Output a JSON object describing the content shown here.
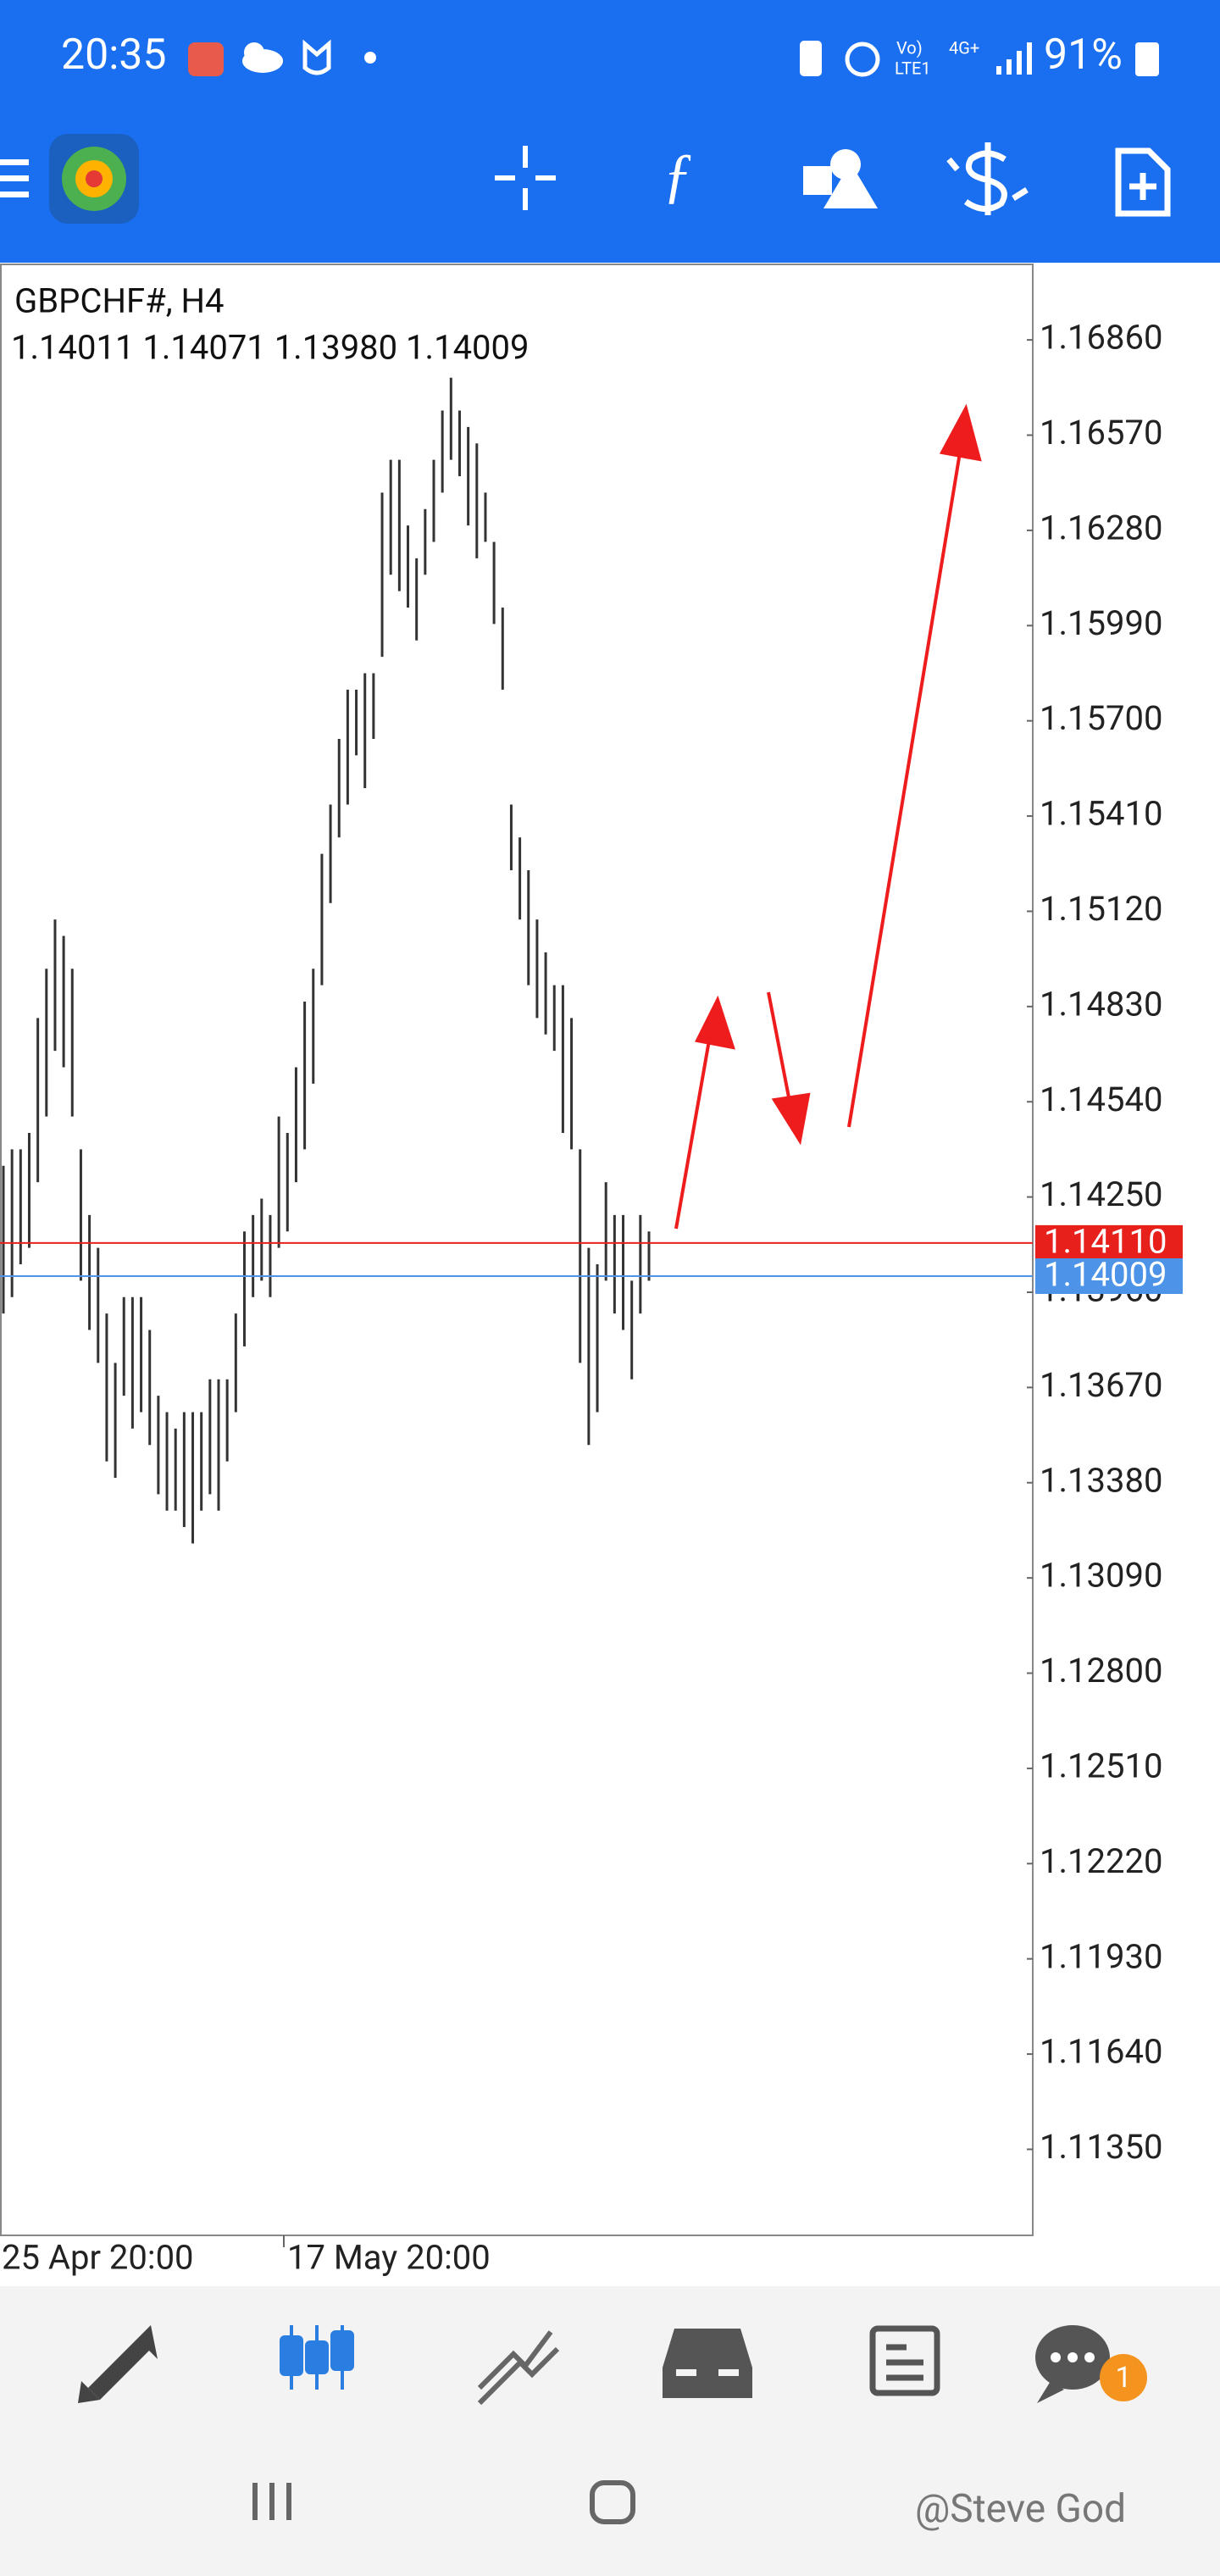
{
  "status_bar": {
    "time": "20:35",
    "volte": "Vo)",
    "lte": "LTE1",
    "network": "4G+",
    "battery": "91%"
  },
  "chart": {
    "symbol": "GBPCHF#, H4",
    "ohlc": "1.14011 1.14071 1.13980 1.14009",
    "ylim": [
      1.11088,
      1.1709
    ],
    "yticks": [
      {
        "value": 1.1686,
        "label": "1.16860"
      },
      {
        "value": 1.1657,
        "label": "1.16570"
      },
      {
        "value": 1.1628,
        "label": "1.16280"
      },
      {
        "value": 1.1599,
        "label": "1.15990"
      },
      {
        "value": 1.157,
        "label": "1.15700"
      },
      {
        "value": 1.1541,
        "label": "1.15410"
      },
      {
        "value": 1.1512,
        "label": "1.15120"
      },
      {
        "value": 1.1483,
        "label": "1.14830"
      },
      {
        "value": 1.1454,
        "label": "1.14540"
      },
      {
        "value": 1.1425,
        "label": "1.14250"
      },
      {
        "value": 1.1396,
        "label": "1.13960"
      },
      {
        "value": 1.1367,
        "label": "1.13670"
      },
      {
        "value": 1.1338,
        "label": "1.13380"
      },
      {
        "value": 1.1309,
        "label": "1.13090"
      },
      {
        "value": 1.128,
        "label": "1.12800"
      },
      {
        "value": 1.1251,
        "label": "1.12510"
      },
      {
        "value": 1.1222,
        "label": "1.12220"
      },
      {
        "value": 1.1193,
        "label": "1.11930"
      },
      {
        "value": 1.1164,
        "label": "1.11640"
      },
      {
        "value": 1.1135,
        "label": "1.11350"
      }
    ],
    "price_lines": [
      {
        "value": 1.1411,
        "label": "1.14110",
        "color": "#e8201c"
      },
      {
        "value": 1.14009,
        "color": "#4d94e8"
      }
    ],
    "bars": {
      "high": [
        1.14345,
        1.14395,
        1.14395,
        1.14445,
        1.14795,
        1.14945,
        1.15095,
        1.15045,
        1.14945,
        1.14395,
        1.14195,
        1.14095,
        1.13895,
        1.13745,
        1.13945,
        1.13945,
        1.13945,
        1.13845,
        1.13645,
        1.13595,
        1.13545,
        1.13595,
        1.13595,
        1.13595,
        1.13695,
        1.13695,
        1.13695,
        1.13895,
        1.14145,
        1.14195,
        1.14245,
        1.14195,
        1.14495,
        1.14445,
        1.14645,
        1.14845,
        1.14945,
        1.15295,
        1.15445,
        1.15645,
        1.15795,
        1.15795,
        1.15845,
        1.15845,
        1.16395,
        1.16495,
        1.16495,
        1.16295,
        1.16195,
        1.16345,
        1.16495,
        1.16645,
        1.16745,
        1.16645,
        1.16595,
        1.16545,
        1.16395,
        1.16245,
        1.16045,
        1.15445,
        1.15345,
        1.15245,
        1.15095,
        1.14995,
        1.14895,
        1.14895,
        1.14795,
        1.14395,
        1.14095,
        1.14045,
        1.14295,
        1.14195,
        1.14195,
        1.13995,
        1.14195,
        1.14145
      ],
      "low": [
        1.13895,
        1.13945,
        1.14045,
        1.14095,
        1.14295,
        1.14495,
        1.14695,
        1.14645,
        1.14495,
        1.13995,
        1.13845,
        1.13745,
        1.13445,
        1.13395,
        1.13645,
        1.13545,
        1.13595,
        1.13495,
        1.13345,
        1.13295,
        1.13295,
        1.13245,
        1.13195,
        1.13295,
        1.13345,
        1.13295,
        1.13445,
        1.13595,
        1.13795,
        1.13945,
        1.13995,
        1.13945,
        1.14095,
        1.14145,
        1.14295,
        1.14395,
        1.14595,
        1.14895,
        1.15145,
        1.15345,
        1.15445,
        1.15595,
        1.15495,
        1.15645,
        1.15895,
        1.16145,
        1.16095,
        1.16045,
        1.15945,
        1.16145,
        1.16245,
        1.16395,
        1.16495,
        1.16445,
        1.16295,
        1.16195,
        1.16245,
        1.15995,
        1.15795,
        1.15245,
        1.15095,
        1.14895,
        1.14795,
        1.14745,
        1.14695,
        1.14445,
        1.14395,
        1.13745,
        1.13495,
        1.13595,
        1.13995,
        1.13895,
        1.13845,
        1.13695,
        1.13895,
        1.13995
      ]
    },
    "xlabels": [
      "25 Apr 20:00",
      "17 May 20:00"
    ]
  },
  "bottom_nav": {
    "badge": "1"
  },
  "watermark": "@Steve God"
}
